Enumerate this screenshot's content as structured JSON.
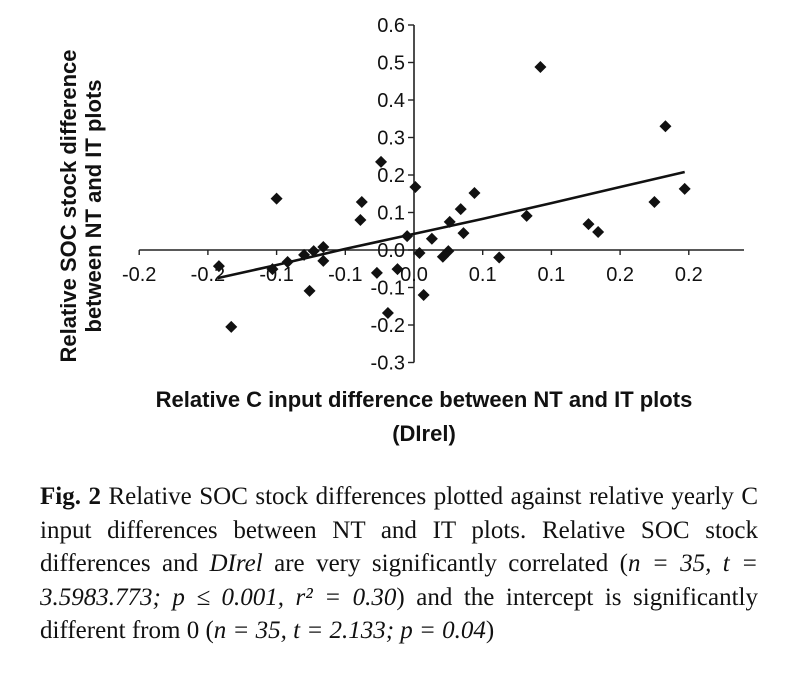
{
  "chart_data": {
    "type": "scatter",
    "title": "",
    "xlabel_lines": [
      "Relative C input difference between NT and IT plots",
      "(DIrel)"
    ],
    "ylabel_lines": [
      "Relative SOC stock difference",
      "between NT and IT plots"
    ],
    "xlim": [
      -0.2,
      0.24
    ],
    "ylim": [
      -0.3,
      0.6
    ],
    "x_ticks": [
      -0.2,
      -0.15,
      -0.1,
      -0.05,
      0.0,
      0.05,
      0.1,
      0.15,
      0.2
    ],
    "x_tick_labels": [
      "-0.2",
      "-0.2",
      "-0.1",
      "-0.1",
      "0.0",
      "0.1",
      "0.1",
      "0.2",
      "0.2"
    ],
    "y_ticks": [
      0.6,
      0.5,
      0.4,
      0.3,
      0.2,
      0.1,
      0.0,
      -0.1,
      -0.2,
      -0.3
    ],
    "y_tick_labels": [
      "0.6",
      "0.5",
      "0.4",
      "0.3",
      "0.2",
      "0.1",
      "0.0",
      "-0.1",
      "-0.2",
      "-0.3"
    ],
    "grid": false,
    "legend": "none",
    "marker": "diamond",
    "points": [
      [
        -0.142,
        -0.043
      ],
      [
        -0.133,
        -0.205
      ],
      [
        -0.1,
        0.137
      ],
      [
        -0.103,
        -0.051
      ],
      [
        -0.092,
        -0.032
      ],
      [
        -0.08,
        -0.013
      ],
      [
        -0.076,
        -0.109
      ],
      [
        -0.073,
        -0.003
      ],
      [
        -0.066,
        0.008
      ],
      [
        -0.066,
        -0.029
      ],
      [
        -0.039,
        0.08
      ],
      [
        -0.038,
        0.128
      ],
      [
        -0.027,
        -0.061
      ],
      [
        -0.024,
        0.235
      ],
      [
        -0.019,
        -0.168
      ],
      [
        -0.012,
        -0.051
      ],
      [
        -0.005,
        0.037
      ],
      [
        0.001,
        0.168
      ],
      [
        0.004,
        -0.008
      ],
      [
        0.007,
        -0.12
      ],
      [
        0.013,
        0.03
      ],
      [
        0.021,
        -0.018
      ],
      [
        0.025,
        -0.003
      ],
      [
        0.026,
        0.075
      ],
      [
        0.034,
        0.109
      ],
      [
        0.036,
        0.045
      ],
      [
        0.044,
        0.152
      ],
      [
        0.062,
        -0.02
      ],
      [
        0.082,
        0.091
      ],
      [
        0.092,
        0.488
      ],
      [
        0.127,
        0.069
      ],
      [
        0.134,
        0.048
      ],
      [
        0.175,
        0.128
      ],
      [
        0.183,
        0.33
      ],
      [
        0.197,
        0.163
      ]
    ],
    "trendline": {
      "type": "linear",
      "points": [
        [
          -0.143,
          -0.075
        ],
        [
          -0.1,
          -0.04
        ],
        [
          -0.05,
          0.003
        ],
        [
          0.0,
          0.043
        ],
        [
          0.05,
          0.083
        ],
        [
          0.1,
          0.125
        ],
        [
          0.15,
          0.168
        ],
        [
          0.197,
          0.208
        ]
      ]
    }
  },
  "caption": {
    "fig_label": "Fig. 2",
    "text_1": " Relative SOC stock differences plotted against relative yearly C input differences between NT and IT plots. Relative SOC stock differences and ",
    "italic_term": "DIrel",
    "text_2": " are very significantly correlated (",
    "stats_1": "n = 35, t = 3.5983.773; p ≤ 0.001, r² = 0.30",
    "text_3": ") and the intercept is significantly different from 0 (",
    "stats_2": "n = 35, t = 2.133; p = 0.04",
    "text_4": ")"
  }
}
